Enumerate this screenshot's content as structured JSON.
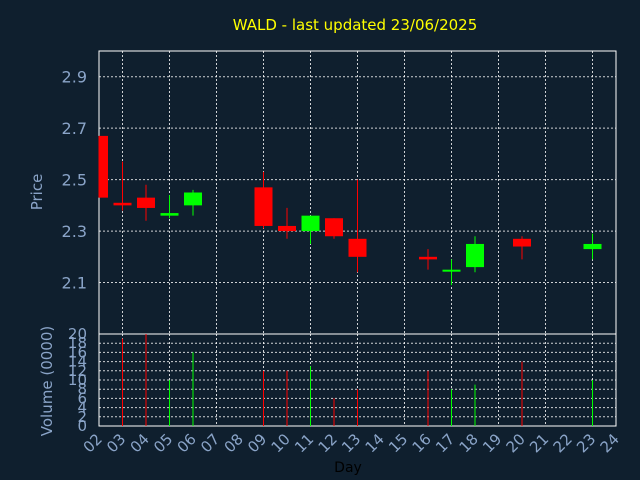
{
  "chart_data": {
    "type": "candlestick",
    "title": "WALD - last updated 23/06/2025",
    "xlabel": "Day",
    "price_ylabel": "Price",
    "volume_ylabel": "Volume (0000)",
    "x_ticks": [
      "02",
      "03",
      "04",
      "05",
      "06",
      "07",
      "08",
      "09",
      "10",
      "11",
      "12",
      "13",
      "14",
      "15",
      "16",
      "17",
      "18",
      "19",
      "20",
      "21",
      "22",
      "23",
      "24"
    ],
    "price_ylim": [
      1.9,
      3.0
    ],
    "price_yticks": [
      "2.1",
      "2.3",
      "2.5",
      "2.7",
      "2.9"
    ],
    "volume_ylim": [
      0,
      20
    ],
    "volume_yticks": [
      "0",
      "2",
      "4",
      "6",
      "8",
      "10",
      "12",
      "14",
      "16",
      "18",
      "20"
    ],
    "grid": true,
    "colors": {
      "up": "#00ff00",
      "down": "#ff0000",
      "grid": "#ffffff",
      "axis_text": "#8aa4c8",
      "title": "#ffff00",
      "background": "#0f1f2e",
      "label": "#000000"
    },
    "candles": [
      {
        "day": "02",
        "open": 2.67,
        "high": 2.67,
        "low": 2.43,
        "close": 2.43,
        "volume": 0
      },
      {
        "day": "03",
        "open": 2.41,
        "high": 2.57,
        "low": 2.38,
        "close": 2.4,
        "volume": 19
      },
      {
        "day": "04",
        "open": 2.43,
        "high": 2.48,
        "low": 2.34,
        "close": 2.39,
        "volume": 20
      },
      {
        "day": "05",
        "open": 2.36,
        "high": 2.44,
        "low": 2.35,
        "close": 2.37,
        "volume": 10
      },
      {
        "day": "06",
        "open": 2.4,
        "high": 2.46,
        "low": 2.36,
        "close": 2.45,
        "volume": 16
      },
      {
        "day": "09",
        "open": 2.47,
        "high": 2.53,
        "low": 2.31,
        "close": 2.32,
        "volume": 12
      },
      {
        "day": "10",
        "open": 2.32,
        "high": 2.39,
        "low": 2.27,
        "close": 2.3,
        "volume": 12
      },
      {
        "day": "11",
        "open": 2.3,
        "high": 2.36,
        "low": 2.25,
        "close": 2.36,
        "volume": 13
      },
      {
        "day": "12",
        "open": 2.35,
        "high": 2.35,
        "low": 2.27,
        "close": 2.28,
        "volume": 6
      },
      {
        "day": "13",
        "open": 2.27,
        "high": 2.5,
        "low": 2.14,
        "close": 2.2,
        "volume": 8
      },
      {
        "day": "16",
        "open": 2.2,
        "high": 2.23,
        "low": 2.15,
        "close": 2.19,
        "volume": 12
      },
      {
        "day": "17",
        "open": 2.15,
        "high": 2.19,
        "low": 2.09,
        "close": 2.15,
        "volume": 8
      },
      {
        "day": "18",
        "open": 2.16,
        "high": 2.28,
        "low": 2.14,
        "close": 2.25,
        "volume": 9
      },
      {
        "day": "20",
        "open": 2.27,
        "high": 2.28,
        "low": 2.19,
        "close": 2.24,
        "volume": 14
      },
      {
        "day": "23",
        "open": 2.23,
        "high": 2.29,
        "low": 2.19,
        "close": 2.25,
        "volume": 10
      }
    ]
  }
}
